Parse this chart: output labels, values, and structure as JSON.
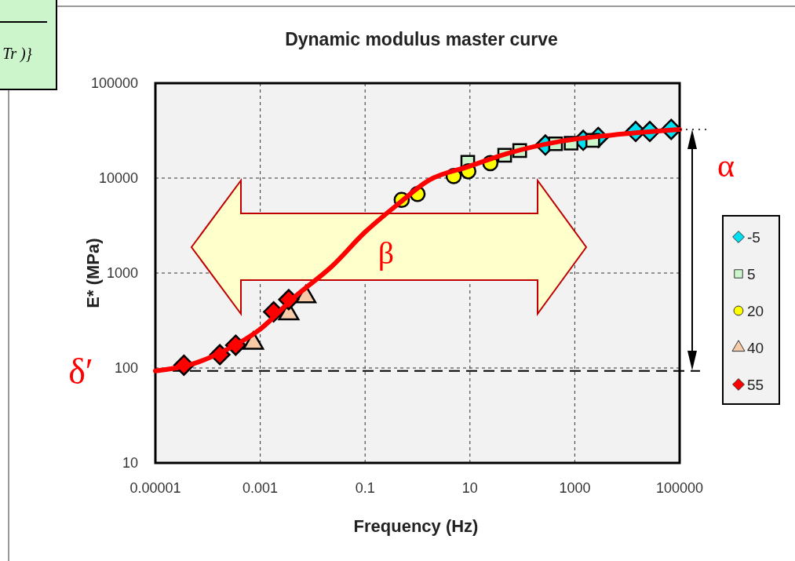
{
  "chart_data": {
    "type": "scatter",
    "title": "Dynamic modulus master curve",
    "xlabel": "Frequency (Hz)",
    "ylabel": "E* (MPa)",
    "log": "xy",
    "xlim": [
      1e-05,
      100000
    ],
    "ylim": [
      10,
      100000
    ],
    "xticks": [
      {
        "value": 1e-05,
        "label": "0.00001"
      },
      0.001,
      0.1,
      10,
      1000,
      100000
    ],
    "yticks": [
      10,
      100,
      1000,
      10000,
      100000
    ],
    "grid": true,
    "legend": "right",
    "series": [
      {
        "name": "-5",
        "color": "#00e0f0",
        "marker": "diamond",
        "x": [
          275,
          1450,
          2800,
          14500,
          27000,
          69000
        ],
        "values": [
          22300,
          25000,
          26800,
          31000,
          31000,
          32600
        ]
      },
      {
        "name": "5",
        "color": "#ccf5cc",
        "marker": "square",
        "x": [
          9.1,
          46,
          89,
          430,
          850,
          2200
        ],
        "values": [
          14700,
          17400,
          19500,
          23000,
          23300,
          25000
        ]
      },
      {
        "name": "20",
        "color": "#ffff00",
        "marker": "circle",
        "x": [
          0.5,
          1.0,
          4.9,
          9.3,
          24.5
        ],
        "values": [
          5900,
          6800,
          10500,
          11800,
          14400
        ]
      },
      {
        "name": "40",
        "color": "#f8cba8",
        "marker": "triangle",
        "x": [
          0.00074,
          0.0035,
          0.0074
        ],
        "values": [
          182,
          372,
          562
        ]
      },
      {
        "name": "55",
        "color": "#ff0000",
        "marker": "diamond",
        "x": [
          3.5e-05,
          0.00017,
          0.00034,
          0.0018,
          0.0035
        ],
        "values": [
          107,
          138,
          174,
          390,
          525
        ]
      },
      {
        "type": "line",
        "color": "#ff0000",
        "marker": "none",
        "x": [
          1e-05,
          4.3e-05,
          0.00024,
          0.00095,
          0.0048,
          0.023,
          0.1,
          0.43,
          1.66,
          9.3,
          52,
          510,
          5100,
          100000
        ],
        "values": [
          93,
          107,
          158,
          251,
          575,
          1170,
          2700,
          5350,
          9500,
          13200,
          18200,
          24300,
          28400,
          32500
        ]
      }
    ],
    "ref_lines": [
      {
        "axis": "y",
        "value": 93,
        "label": "δ′",
        "line_style": "dashed",
        "color": "#000000"
      }
    ],
    "annotations": [
      "Tr )}",
      "α",
      "β"
    ]
  }
}
